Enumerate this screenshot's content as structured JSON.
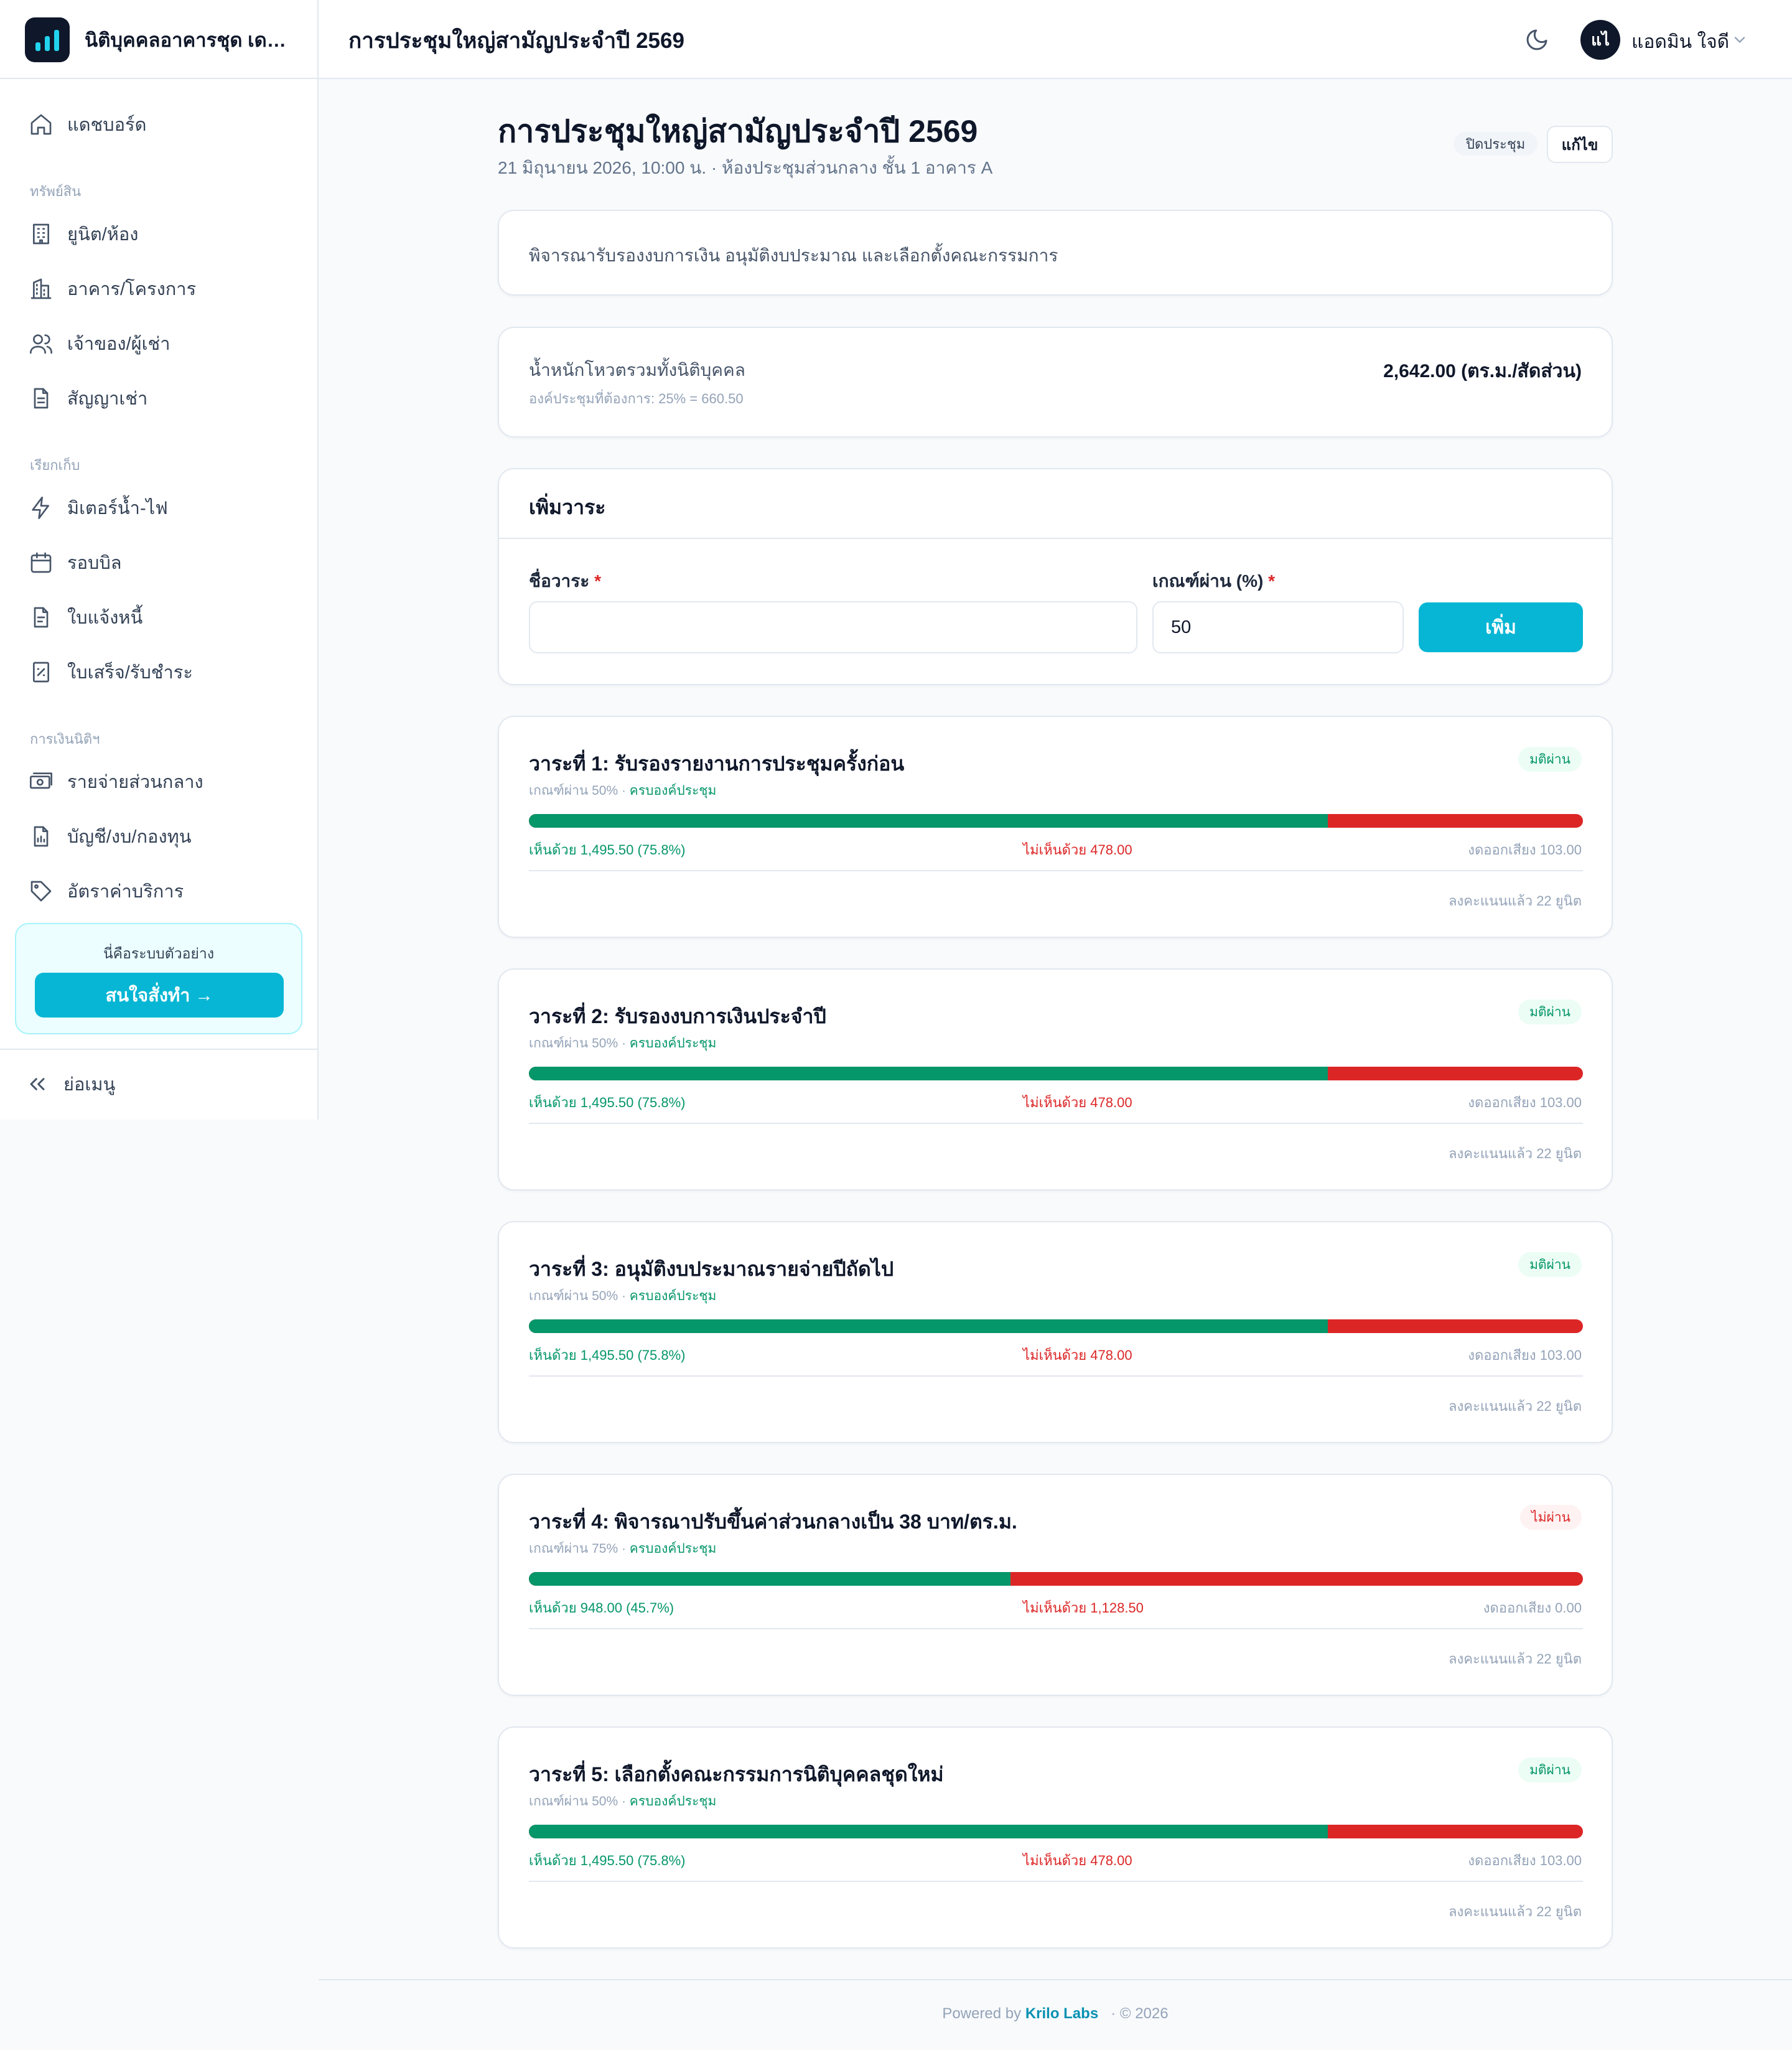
{
  "brand": {
    "name": "นิติบุคคลอาคารชุด เดอะ ..."
  },
  "header": {
    "title": "การประชุมใหญ่สามัญประจำปี 2569",
    "user_initials": "แไ",
    "user_name": "แอดมิน ใจดี"
  },
  "sidebar": {
    "items": [
      {
        "label": "แดชบอร์ด",
        "icon": "home-icon"
      },
      {
        "label": "ยูนิต/ห้อง",
        "icon": "building-icon"
      },
      {
        "label": "อาคาร/โครงการ",
        "icon": "buildings-icon"
      },
      {
        "label": "เจ้าของ/ผู้เช่า",
        "icon": "users-icon"
      },
      {
        "label": "สัญญาเช่า",
        "icon": "file-icon"
      },
      {
        "label": "มิเตอร์น้ำ-ไฟ",
        "icon": "zap-icon"
      },
      {
        "label": "รอบบิล",
        "icon": "calendar-icon"
      },
      {
        "label": "ใบแจ้งหนี้",
        "icon": "invoice-icon"
      },
      {
        "label": "ใบเสร็จ/รับชำระ",
        "icon": "receipt-icon"
      },
      {
        "label": "รายจ่ายส่วนกลาง",
        "icon": "cash-icon"
      },
      {
        "label": "บัญชี/งบ/กองทุน",
        "icon": "chart-file-icon"
      },
      {
        "label": "อัตราค่าบริการ",
        "icon": "tag-icon"
      }
    ],
    "sections": [
      "ทรัพย์สิน",
      "เรียกเก็บ",
      "การเงินนิติฯ"
    ],
    "promo_text": "นี่คือระบบตัวอย่าง",
    "promo_button": "สนใจสั่งทำ →",
    "collapse_label": "ย่อเมนู"
  },
  "meeting": {
    "title": "การประชุมใหญ่สามัญประจำปี 2569",
    "subtitle": "21 มิถุนายน 2026, 10:00 น. · ห้องประชุมส่วนกลาง ชั้น 1 อาคาร A",
    "status_badge": "ปิดประชุม",
    "edit_label": "แก้ไข",
    "description": "พิจารณารับรองงบการเงิน อนุมัติงบประมาณ และเลือกตั้งคณะกรรมการ",
    "weight_label": "น้ำหนักโหวตรวมทั้งนิติบุคคล",
    "weight_value": "2,642.00 (ตร.ม./สัดส่วน)",
    "quorum_note": "องค์ประชุมที่ต้องการ: 25% = 660.50"
  },
  "add_form": {
    "heading": "เพิ่มวาระ",
    "name_label": "ชื่อวาระ",
    "threshold_label": "เกณฑ์ผ่าน (%)",
    "required_mark": "*",
    "name_value": "",
    "threshold_value": "50",
    "add_button": "เพิ่ม"
  },
  "agenda": [
    {
      "title": "วาระที่ 1: รับรองรายงานการประชุมครั้งก่อน",
      "threshold": "เกณฑ์ผ่าน 50% · ",
      "quorum": "ครบองค์ประชุม",
      "status": "มติผ่าน",
      "passed": true,
      "yes_pct": 75.8,
      "yes": "เห็นด้วย 1,495.50 (75.8%)",
      "no": "ไม่เห็นด้วย 478.00",
      "abstain": "งดออกเสียง 103.00",
      "voted": "ลงคะแนนแล้ว 22 ยูนิต"
    },
    {
      "title": "วาระที่ 2: รับรองงบการเงินประจำปี",
      "threshold": "เกณฑ์ผ่าน 50% · ",
      "quorum": "ครบองค์ประชุม",
      "status": "มติผ่าน",
      "passed": true,
      "yes_pct": 75.8,
      "yes": "เห็นด้วย 1,495.50 (75.8%)",
      "no": "ไม่เห็นด้วย 478.00",
      "abstain": "งดออกเสียง 103.00",
      "voted": "ลงคะแนนแล้ว 22 ยูนิต"
    },
    {
      "title": "วาระที่ 3: อนุมัติงบประมาณรายจ่ายปีถัดไป",
      "threshold": "เกณฑ์ผ่าน 50% · ",
      "quorum": "ครบองค์ประชุม",
      "status": "มติผ่าน",
      "passed": true,
      "yes_pct": 75.8,
      "yes": "เห็นด้วย 1,495.50 (75.8%)",
      "no": "ไม่เห็นด้วย 478.00",
      "abstain": "งดออกเสียง 103.00",
      "voted": "ลงคะแนนแล้ว 22 ยูนิต"
    },
    {
      "title": "วาระที่ 4: พิจารณาปรับขึ้นค่าส่วนกลางเป็น 38 บาท/ตร.ม.",
      "threshold": "เกณฑ์ผ่าน 75% · ",
      "quorum": "ครบองค์ประชุม",
      "status": "ไม่ผ่าน",
      "passed": false,
      "yes_pct": 45.7,
      "yes": "เห็นด้วย 948.00 (45.7%)",
      "no": "ไม่เห็นด้วย 1,128.50",
      "abstain": "งดออกเสียง 0.00",
      "voted": "ลงคะแนนแล้ว 22 ยูนิต"
    },
    {
      "title": "วาระที่ 5: เลือกตั้งคณะกรรมการนิติบุคคลชุดใหม่",
      "threshold": "เกณฑ์ผ่าน 50% · ",
      "quorum": "ครบองค์ประชุม",
      "status": "มติผ่าน",
      "passed": true,
      "yes_pct": 75.8,
      "yes": "เห็นด้วย 1,495.50 (75.8%)",
      "no": "ไม่เห็นด้วย 478.00",
      "abstain": "งดออกเสียง 103.00",
      "voted": "ลงคะแนนแล้ว 22 ยูนิต"
    }
  ],
  "colors": {
    "accent": "#06b6d4",
    "pass_text": "#059669",
    "pass_bg": "#ecfdf5",
    "fail_text": "#dc2626",
    "fail_bg": "#fef2f2"
  },
  "footer": {
    "powered": "Powered by ",
    "company": "Krilo Labs",
    "copyright": "·   © 2026"
  }
}
